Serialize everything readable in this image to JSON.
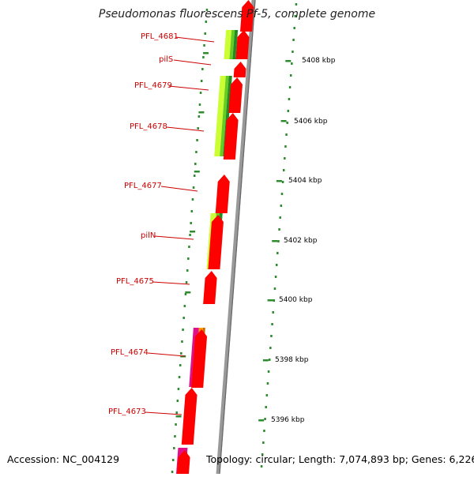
{
  "title": "Pseudomonas fluorescens Pf-5, complete genome",
  "genes": [
    {
      "name": "PFL_4681"
    },
    {
      "name": "pilS"
    },
    {
      "name": "PFL_4679"
    },
    {
      "name": "PFL_4678"
    },
    {
      "name": "PFL_4677"
    },
    {
      "name": "pilN"
    },
    {
      "name": "PFL_4675"
    },
    {
      "name": "PFL_4674"
    },
    {
      "name": "PFL_4673"
    }
  ],
  "scale_labels": [
    "5408 kbp",
    "5406 kbp",
    "5404 kbp",
    "5402 kbp",
    "5400 kbp",
    "5398 kbp",
    "5396 kbp"
  ],
  "footer": {
    "accession": "Accession: NC_004129",
    "topology": "Topology: circular; Length: 7,074,893 bp; Genes: 6,226"
  },
  "colors": {
    "gene_arrow": "#ff0000",
    "backbone": "#999999",
    "gene_label": "#cc0000",
    "tick": "#2e8b2e",
    "green_light": "#ccff33",
    "green_dark": "#228b22",
    "magenta": "#e0108a",
    "orange": "#ff9900"
  }
}
